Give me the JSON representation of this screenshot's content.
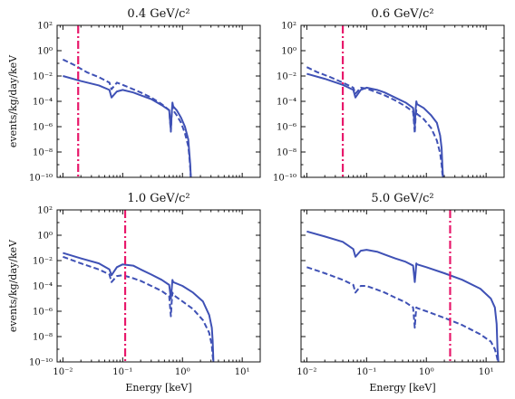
{
  "figure": {
    "ylabel": "events/kg/day/keV",
    "xlabel": "Energy [keV]",
    "colors": {
      "solid": "#3f51b5",
      "dashed": "#3f51b5",
      "threshold": "#e8196b"
    }
  },
  "chart_data": [
    {
      "type": "line",
      "title": "0.4 GeV/c²",
      "xscale": "log",
      "yscale": "log",
      "xlim": [
        0.008,
        20
      ],
      "ylim": [
        1e-10,
        100
      ],
      "x_ticks": [
        "10⁻²",
        "10⁻¹",
        "10⁰",
        "10¹"
      ],
      "y_ticks": [
        "10²",
        "10⁰",
        "10⁻²",
        "10⁻⁴",
        "10⁻⁶",
        "10⁻⁸",
        "10⁻¹⁰"
      ],
      "threshold_x": 0.018,
      "series": [
        {
          "style": "solid",
          "x": [
            0.01,
            0.02,
            0.04,
            0.06,
            0.065,
            0.08,
            0.1,
            0.15,
            0.2,
            0.3,
            0.45,
            0.6,
            0.64,
            0.66,
            0.68,
            0.7,
            0.8,
            0.95,
            1.1,
            1.25,
            1.3,
            1.35,
            1.38
          ],
          "y": [
            0.01,
            0.004,
            0.0018,
            0.0008,
            0.0002,
            0.0006,
            0.0008,
            0.0005,
            0.0003,
            0.00015,
            5e-05,
            2e-05,
            5e-07,
            1e-05,
            8e-05,
            4e-05,
            2e-05,
            5e-06,
            1e-06,
            1e-07,
            1e-08,
            1e-09,
            1e-10
          ]
        },
        {
          "style": "dashed",
          "x": [
            0.01,
            0.015,
            0.025,
            0.04,
            0.06,
            0.065,
            0.08,
            0.1,
            0.15,
            0.2,
            0.3,
            0.45,
            0.6,
            0.64,
            0.66,
            0.68,
            0.7,
            0.8,
            0.95,
            1.1,
            1.25,
            1.3,
            1.35,
            1.38
          ],
          "y": [
            0.2,
            0.08,
            0.02,
            0.008,
            0.003,
            0.0009,
            0.003,
            0.002,
            0.0009,
            0.0005,
            0.0002,
            6e-05,
            2e-05,
            4e-07,
            8e-06,
            4e-05,
            2e-05,
            8e-06,
            2e-06,
            3e-07,
            3e-08,
            5e-09,
            5e-10,
            1e-10
          ]
        }
      ]
    },
    {
      "type": "line",
      "title": "0.6 GeV/c²",
      "xscale": "log",
      "yscale": "log",
      "xlim": [
        0.008,
        20
      ],
      "ylim": [
        1e-10,
        100
      ],
      "x_ticks": [
        "10⁻²",
        "10⁻¹",
        "10⁰",
        "10¹"
      ],
      "y_ticks": [
        "10²",
        "10⁰",
        "10⁻²",
        "10⁻⁴",
        "10⁻⁶",
        "10⁻⁸",
        "10⁻¹⁰"
      ],
      "threshold_x": 0.04,
      "series": [
        {
          "style": "solid",
          "x": [
            0.01,
            0.02,
            0.04,
            0.06,
            0.065,
            0.08,
            0.1,
            0.15,
            0.2,
            0.3,
            0.45,
            0.6,
            0.64,
            0.66,
            0.68,
            0.7,
            0.9,
            1.2,
            1.5,
            1.7,
            1.8,
            1.85,
            1.9
          ],
          "y": [
            0.015,
            0.006,
            0.002,
            0.0008,
            0.0002,
            0.0008,
            0.0012,
            0.0008,
            0.0005,
            0.0002,
            8e-05,
            3e-05,
            1e-06,
            2e-05,
            0.0001,
            6e-05,
            3e-05,
            8e-06,
            2e-06,
            2e-07,
            2e-08,
            1e-09,
            1e-10
          ]
        },
        {
          "style": "dashed",
          "x": [
            0.01,
            0.015,
            0.025,
            0.04,
            0.06,
            0.065,
            0.08,
            0.1,
            0.15,
            0.2,
            0.3,
            0.45,
            0.6,
            0.64,
            0.66,
            0.68,
            0.7,
            0.9,
            1.2,
            1.5,
            1.7,
            1.8,
            1.85,
            1.9
          ],
          "y": [
            0.05,
            0.02,
            0.008,
            0.003,
            0.0012,
            0.0004,
            0.0012,
            0.001,
            0.0005,
            0.0003,
            0.00012,
            4e-05,
            1.5e-05,
            3e-07,
            5e-06,
            2e-05,
            1e-05,
            4e-06,
            8e-07,
            8e-08,
            8e-09,
            1e-09,
            2e-10,
            1e-10
          ]
        }
      ]
    },
    {
      "type": "line",
      "title": "1.0 GeV/c²",
      "xscale": "log",
      "yscale": "log",
      "xlim": [
        0.008,
        20
      ],
      "ylim": [
        1e-10,
        100
      ],
      "x_ticks": [
        "10⁻²",
        "10⁻¹",
        "10⁰",
        "10¹"
      ],
      "y_ticks": [
        "10²",
        "10⁰",
        "10⁻²",
        "10⁻⁴",
        "10⁻⁶",
        "10⁻⁸",
        "10⁻¹⁰"
      ],
      "threshold_x": 0.11,
      "series": [
        {
          "style": "solid",
          "x": [
            0.01,
            0.02,
            0.04,
            0.06,
            0.065,
            0.08,
            0.1,
            0.15,
            0.2,
            0.3,
            0.45,
            0.6,
            0.64,
            0.66,
            0.68,
            0.7,
            1.0,
            1.5,
            2.2,
            2.8,
            3.1,
            3.2,
            3.3
          ],
          "y": [
            0.04,
            0.015,
            0.006,
            0.002,
            0.0007,
            0.003,
            0.005,
            0.004,
            0.002,
            0.0008,
            0.0003,
            0.00012,
            1e-05,
            5e-05,
            0.0003,
            0.0002,
            0.0001,
            3e-05,
            6e-06,
            5e-07,
            5e-08,
            5e-09,
            1e-10
          ]
        },
        {
          "style": "dashed",
          "x": [
            0.01,
            0.02,
            0.04,
            0.06,
            0.065,
            0.08,
            0.1,
            0.15,
            0.2,
            0.3,
            0.45,
            0.6,
            0.64,
            0.66,
            0.68,
            0.7,
            1.0,
            1.5,
            2.2,
            2.8,
            3.1,
            3.2,
            3.3
          ],
          "y": [
            0.02,
            0.006,
            0.002,
            0.0008,
            0.0002,
            0.0006,
            0.0007,
            0.0004,
            0.00025,
            0.0001,
            4e-05,
            1.5e-05,
            4e-07,
            5e-06,
            3e-05,
            2e-05,
            6e-06,
            1.5e-06,
            2e-07,
            2e-08,
            2e-09,
            3e-10,
            1e-10
          ]
        }
      ]
    },
    {
      "type": "line",
      "title": "5.0 GeV/c²",
      "xscale": "log",
      "yscale": "log",
      "xlim": [
        0.008,
        20
      ],
      "ylim": [
        1e-10,
        100
      ],
      "x_ticks": [
        "10⁻²",
        "10⁻¹",
        "10⁰",
        "10¹"
      ],
      "y_ticks": [],
      "threshold_x": 2.5,
      "series": [
        {
          "style": "solid",
          "x": [
            0.01,
            0.02,
            0.04,
            0.06,
            0.065,
            0.08,
            0.1,
            0.15,
            0.2,
            0.3,
            0.45,
            0.6,
            0.64,
            0.66,
            0.68,
            0.7,
            1.0,
            2.0,
            4.0,
            8.0,
            12.0,
            14.0,
            15.0,
            15.5,
            16.0
          ],
          "y": [
            2.0,
            0.8,
            0.3,
            0.08,
            0.02,
            0.06,
            0.07,
            0.05,
            0.03,
            0.015,
            0.008,
            0.004,
            0.0002,
            0.001,
            0.006,
            0.005,
            0.003,
            0.001,
            0.0003,
            6e-05,
            1e-05,
            2e-06,
            1e-07,
            1e-09,
            1e-10
          ]
        },
        {
          "style": "dashed",
          "x": [
            0.01,
            0.02,
            0.04,
            0.06,
            0.065,
            0.08,
            0.1,
            0.15,
            0.2,
            0.3,
            0.45,
            0.6,
            0.64,
            0.66,
            0.68,
            0.7,
            1.0,
            2.0,
            4.0,
            8.0,
            12.0,
            14.0,
            15.0,
            15.5,
            16.0
          ],
          "y": [
            0.003,
            0.001,
            0.0003,
            0.00012,
            3e-05,
            0.0001,
            0.0001,
            5e-05,
            3e-05,
            1.2e-05,
            5e-06,
            2e-06,
            5e-08,
            4e-07,
            2e-06,
            1.8e-06,
            1e-06,
            3e-07,
            8e-08,
            1.5e-08,
            4e-09,
            1e-09,
            3e-10,
            1.5e-10,
            1e-10
          ]
        }
      ]
    }
  ]
}
